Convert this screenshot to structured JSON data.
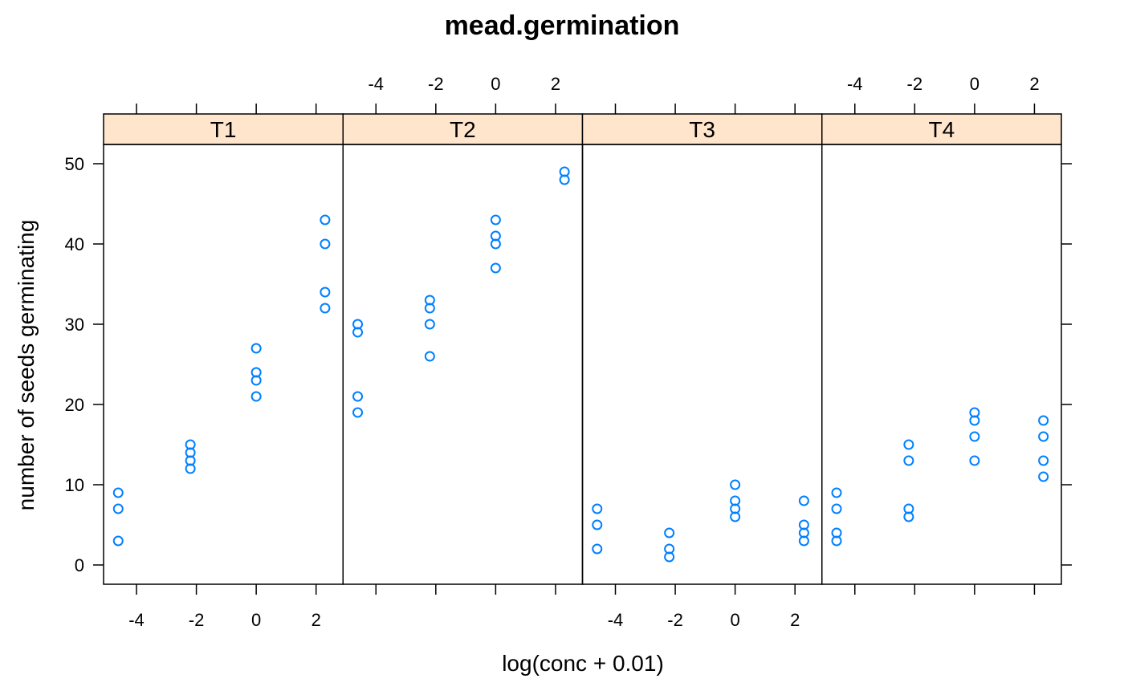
{
  "chart_data": {
    "type": "scatter",
    "title": "mead.germination",
    "xlabel": "log(conc + 0.01)",
    "ylabel": "number of seeds germinating",
    "xlim": [
      -5.1,
      2.9
    ],
    "ylim": [
      -2.4,
      52.4
    ],
    "x_ticks": [
      -4,
      -2,
      0,
      2
    ],
    "x_tick_labels": [
      "-4",
      "-2",
      "0",
      "2"
    ],
    "y_ticks": [
      0,
      10,
      20,
      30,
      40,
      50
    ],
    "y_tick_labels": [
      "0",
      "10",
      "20",
      "30",
      "40",
      "50"
    ],
    "strip_color": "#ffe5cc",
    "point_color": "#0080ff",
    "grid": false,
    "panels": [
      {
        "name": "T1",
        "points": [
          {
            "x": -4.61,
            "y": 3
          },
          {
            "x": -4.61,
            "y": 7
          },
          {
            "x": -4.61,
            "y": 9
          },
          {
            "x": -2.2,
            "y": 12
          },
          {
            "x": -2.2,
            "y": 13
          },
          {
            "x": -2.2,
            "y": 14
          },
          {
            "x": -2.2,
            "y": 15
          },
          {
            "x": 0.0,
            "y": 21
          },
          {
            "x": 0.0,
            "y": 23
          },
          {
            "x": 0.0,
            "y": 24
          },
          {
            "x": 0.0,
            "y": 27
          },
          {
            "x": 2.3,
            "y": 32
          },
          {
            "x": 2.3,
            "y": 34
          },
          {
            "x": 2.3,
            "y": 40
          },
          {
            "x": 2.3,
            "y": 43
          }
        ]
      },
      {
        "name": "T2",
        "points": [
          {
            "x": -4.61,
            "y": 19
          },
          {
            "x": -4.61,
            "y": 21
          },
          {
            "x": -4.61,
            "y": 29
          },
          {
            "x": -4.61,
            "y": 30
          },
          {
            "x": -2.2,
            "y": 26
          },
          {
            "x": -2.2,
            "y": 30
          },
          {
            "x": -2.2,
            "y": 32
          },
          {
            "x": -2.2,
            "y": 33
          },
          {
            "x": 0.0,
            "y": 37
          },
          {
            "x": 0.0,
            "y": 40
          },
          {
            "x": 0.0,
            "y": 41
          },
          {
            "x": 0.0,
            "y": 43
          },
          {
            "x": 2.3,
            "y": 48
          },
          {
            "x": 2.3,
            "y": 49
          }
        ]
      },
      {
        "name": "T3",
        "points": [
          {
            "x": -4.61,
            "y": 2
          },
          {
            "x": -4.61,
            "y": 5
          },
          {
            "x": -4.61,
            "y": 7
          },
          {
            "x": -2.2,
            "y": 1
          },
          {
            "x": -2.2,
            "y": 2
          },
          {
            "x": -2.2,
            "y": 4
          },
          {
            "x": 0.0,
            "y": 6
          },
          {
            "x": 0.0,
            "y": 7
          },
          {
            "x": 0.0,
            "y": 8
          },
          {
            "x": 0.0,
            "y": 10
          },
          {
            "x": 2.3,
            "y": 3
          },
          {
            "x": 2.3,
            "y": 4
          },
          {
            "x": 2.3,
            "y": 5
          },
          {
            "x": 2.3,
            "y": 8
          }
        ]
      },
      {
        "name": "T4",
        "points": [
          {
            "x": -4.61,
            "y": 3
          },
          {
            "x": -4.61,
            "y": 4
          },
          {
            "x": -4.61,
            "y": 7
          },
          {
            "x": -4.61,
            "y": 9
          },
          {
            "x": -2.2,
            "y": 6
          },
          {
            "x": -2.2,
            "y": 7
          },
          {
            "x": -2.2,
            "y": 13
          },
          {
            "x": -2.2,
            "y": 15
          },
          {
            "x": 0.0,
            "y": 13
          },
          {
            "x": 0.0,
            "y": 16
          },
          {
            "x": 0.0,
            "y": 18
          },
          {
            "x": 0.0,
            "y": 19
          },
          {
            "x": 2.3,
            "y": 11
          },
          {
            "x": 2.3,
            "y": 13
          },
          {
            "x": 2.3,
            "y": 16
          },
          {
            "x": 2.3,
            "y": 18
          }
        ]
      }
    ]
  }
}
